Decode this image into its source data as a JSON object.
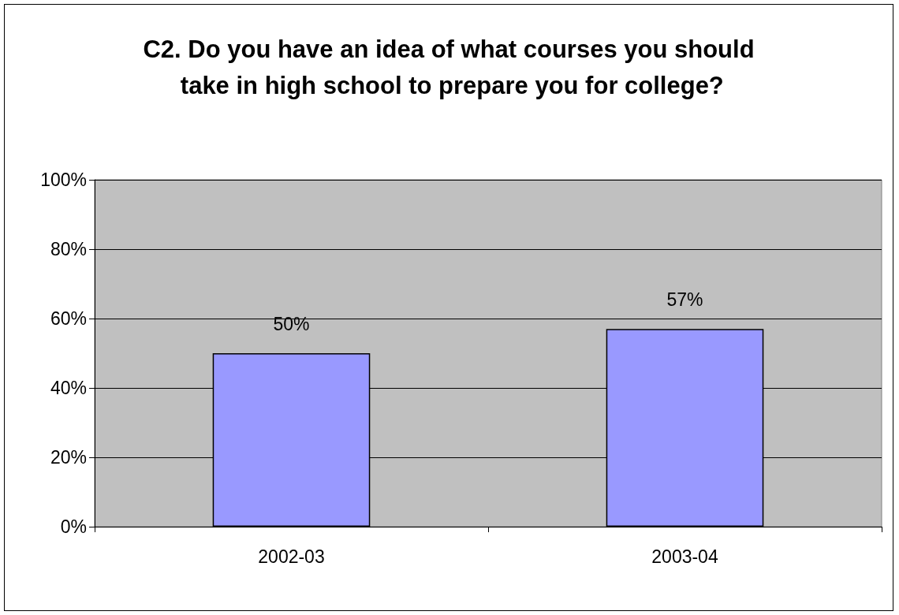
{
  "chart_data": {
    "type": "bar",
    "title": "C2. Do you have an idea of what courses you should take in high school to prepare you for college?",
    "categories": [
      "2002-03",
      "2003-04"
    ],
    "values": [
      50,
      57
    ],
    "value_labels": [
      "50%",
      "57%"
    ],
    "color": "#9999ff",
    "ylim": [
      0,
      100
    ],
    "yticks": [
      {
        "value": 0,
        "label": "0%"
      },
      {
        "value": 20,
        "label": "20%"
      },
      {
        "value": 40,
        "label": "40%"
      },
      {
        "value": 60,
        "label": "60%"
      },
      {
        "value": 80,
        "label": "80%"
      },
      {
        "value": 100,
        "label": "100%"
      }
    ],
    "grid": "y"
  }
}
